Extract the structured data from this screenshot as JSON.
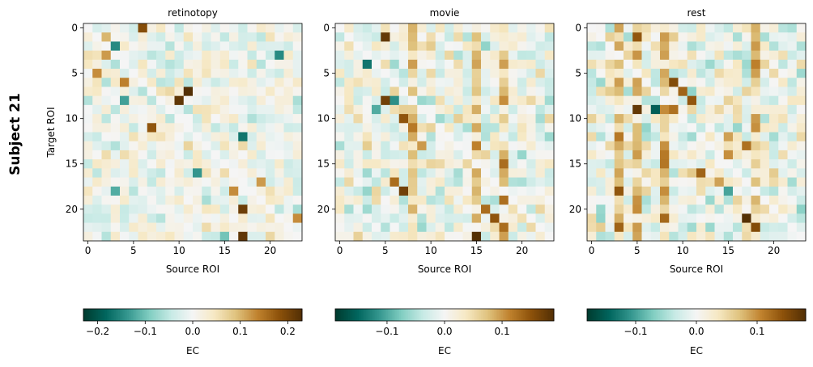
{
  "figure": {
    "row_label": "Subject 21"
  },
  "chart_data": [
    {
      "type": "heatmap",
      "title": "retinotopy",
      "xlabel": "Source ROI",
      "ylabel": "Target ROI",
      "x_ticks": [
        0,
        5,
        10,
        15,
        20
      ],
      "y_ticks": [
        0,
        5,
        10,
        15,
        20
      ],
      "size": 24,
      "colormap": "BrBG_r",
      "vlim": [
        -0.23,
        0.23
      ],
      "colorbar": {
        "label": "EC",
        "ticks": [
          -0.2,
          -0.1,
          0.0,
          0.1,
          0.2
        ],
        "tick_labels": [
          "−0.2",
          "−0.1",
          "0.0",
          "0.1",
          "0.2"
        ]
      },
      "seed": 21,
      "strong": [
        [
          0,
          6,
          0.19
        ],
        [
          1,
          2,
          0.1
        ],
        [
          3,
          2,
          0.12
        ],
        [
          5,
          1,
          0.13
        ],
        [
          6,
          4,
          0.14
        ],
        [
          7,
          11,
          0.23
        ],
        [
          8,
          4,
          -0.13
        ],
        [
          8,
          10,
          0.22
        ],
        [
          11,
          7,
          0.18
        ],
        [
          12,
          17,
          -0.17
        ],
        [
          13,
          11,
          0.07
        ],
        [
          16,
          12,
          -0.14
        ],
        [
          17,
          19,
          0.12
        ],
        [
          18,
          3,
          -0.12
        ],
        [
          18,
          16,
          0.13
        ],
        [
          20,
          17,
          0.21
        ],
        [
          21,
          23,
          0.13
        ],
        [
          23,
          15,
          -0.1
        ],
        [
          23,
          17,
          0.22
        ],
        [
          2,
          3,
          -0.15
        ],
        [
          3,
          21,
          -0.15
        ]
      ]
    },
    {
      "type": "heatmap",
      "title": "movie",
      "xlabel": "Source ROI",
      "ylabel": "",
      "x_ticks": [
        0,
        5,
        10,
        15,
        20
      ],
      "y_ticks": [
        0,
        5,
        10,
        15,
        20
      ],
      "size": 24,
      "colormap": "BrBG_r",
      "vlim": [
        -0.19,
        0.19
      ],
      "colorbar": {
        "label": "EC",
        "ticks": [
          -0.1,
          0.0,
          0.1
        ],
        "tick_labels": [
          "−0.1",
          "0.0",
          "0.1"
        ]
      },
      "seed": 7,
      "strong_cols": [
        8,
        15,
        18
      ],
      "strong": [
        [
          1,
          5,
          0.18
        ],
        [
          4,
          3,
          -0.14
        ],
        [
          8,
          5,
          0.17
        ],
        [
          8,
          6,
          -0.12
        ],
        [
          9,
          4,
          -0.1
        ],
        [
          10,
          7,
          0.15
        ],
        [
          11,
          8,
          0.12
        ],
        [
          13,
          9,
          0.1
        ],
        [
          17,
          6,
          0.13
        ],
        [
          18,
          7,
          0.17
        ],
        [
          20,
          16,
          0.13
        ],
        [
          21,
          17,
          0.15
        ],
        [
          23,
          15,
          0.19
        ],
        [
          22,
          18,
          0.13
        ]
      ]
    },
    {
      "type": "heatmap",
      "title": "rest",
      "xlabel": "Source ROI",
      "ylabel": "",
      "x_ticks": [
        0,
        5,
        10,
        15,
        20
      ],
      "y_ticks": [
        0,
        5,
        10,
        15,
        20
      ],
      "size": 24,
      "colormap": "BrBG_r",
      "vlim": [
        -0.18,
        0.18
      ],
      "colorbar": {
        "label": "EC",
        "ticks": [
          -0.1,
          0.0,
          0.1
        ],
        "tick_labels": [
          "−0.1",
          "0.0",
          "0.1"
        ]
      },
      "seed": 13,
      "strong_cols": [
        5,
        8,
        18,
        3
      ],
      "strong": [
        [
          1,
          5,
          0.14
        ],
        [
          6,
          9,
          0.15
        ],
        [
          7,
          10,
          0.13
        ],
        [
          9,
          5,
          0.17
        ],
        [
          9,
          7,
          -0.15
        ],
        [
          9,
          9,
          0.12
        ],
        [
          8,
          11,
          0.14
        ],
        [
          12,
          15,
          0.09
        ],
        [
          13,
          17,
          0.12
        ],
        [
          14,
          15,
          0.1
        ],
        [
          16,
          12,
          0.13
        ],
        [
          17,
          14,
          0.09
        ],
        [
          21,
          17,
          0.18
        ],
        [
          22,
          18,
          0.15
        ],
        [
          18,
          15,
          -0.1
        ]
      ]
    }
  ]
}
